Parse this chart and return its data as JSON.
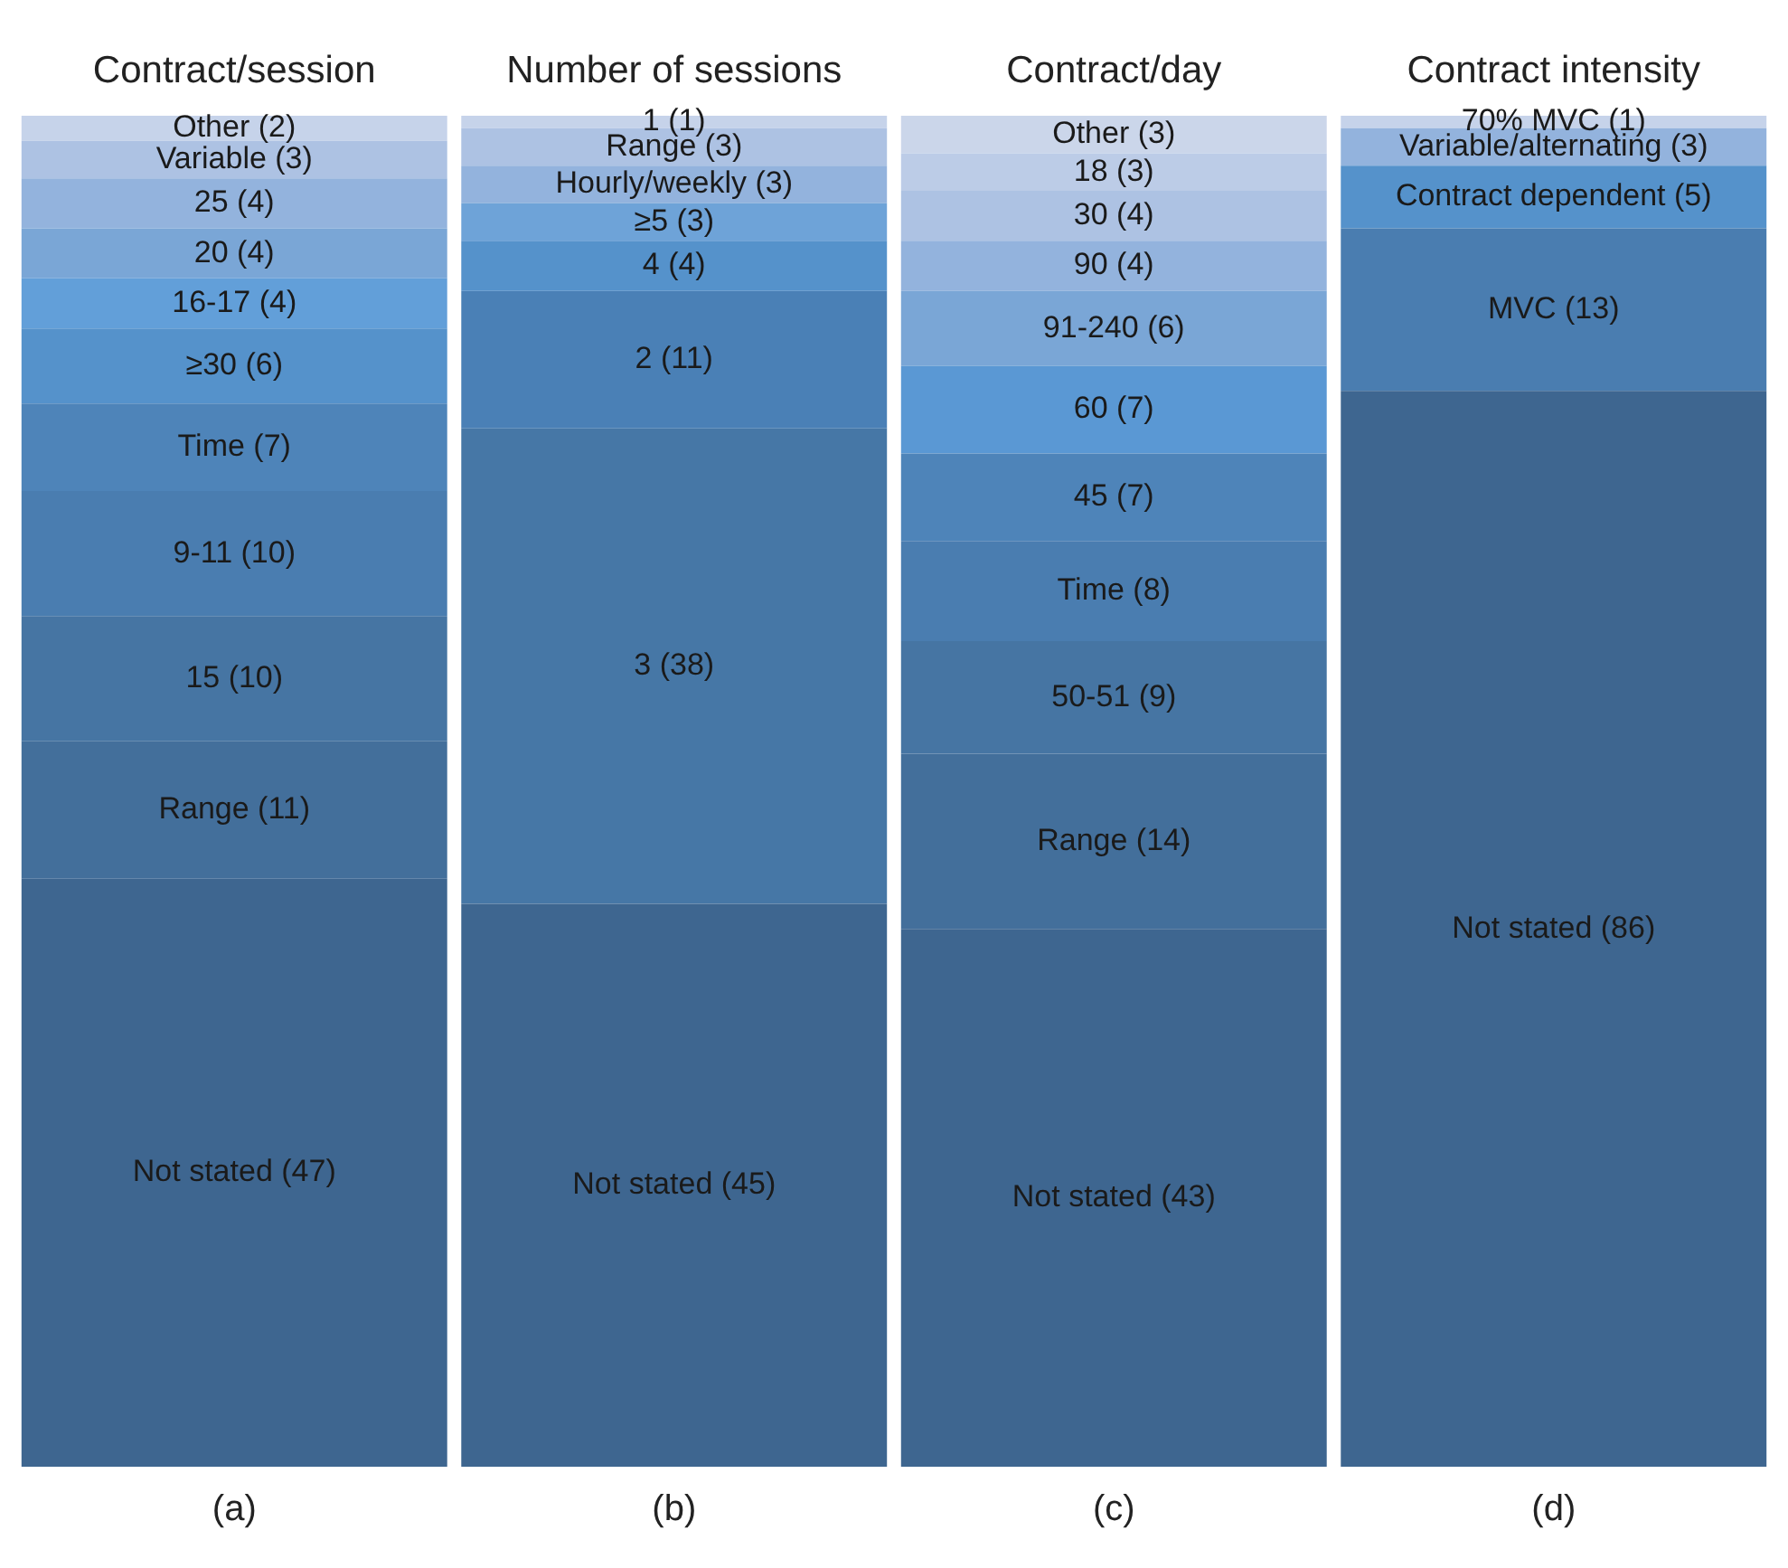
{
  "chart_data": {
    "type": "bar",
    "categories": [
      "(a)",
      "(b)",
      "(c)",
      "(d)"
    ],
    "stacked": true,
    "tick_labels": "x",
    "annotations": [
      {
        "text": "Contract/session",
        "x": "(a)",
        "y": 108
      },
      {
        "text": "Number of sessions",
        "x": "(b)",
        "y": 108
      },
      {
        "text": "Contract/day",
        "x": "(c)",
        "y": 108
      },
      {
        "text": "Contract intensity",
        "x": "(d)",
        "y": 108
      }
    ],
    "series": [
      {
        "values": [
          47,
          45,
          43,
          86
        ],
        "colors": [
          "#3e6690",
          "#3e6690",
          "#3e6690",
          "#3e6690"
        ],
        "value_labels": [
          "Not stated (47)",
          "Not stated (45)",
          "Not stated (43)",
          "Not stated (86)"
        ]
      },
      {
        "values": [
          11,
          38,
          14,
          13
        ],
        "colors": [
          "#436f9b",
          "#4677a6",
          "#436f9b",
          "#4a7db0"
        ],
        "value_labels": [
          "Range (11)",
          "3 (38)",
          "Range (14)",
          "MVC (13)"
        ]
      },
      {
        "values": [
          10,
          11,
          9,
          5
        ],
        "colors": [
          "#4675a3",
          "#4a80b6",
          "#4675a3",
          "#5592cb"
        ],
        "value_labels": [
          "15 (10)",
          "2 (11)",
          "50-51 (9)",
          "Contract dependent (5)"
        ]
      },
      {
        "values": [
          10,
          4,
          8,
          3
        ],
        "colors": [
          "#4a7db0",
          "#5592cb",
          "#4a7db0",
          "#93b3dd"
        ],
        "value_labels": [
          "9-11 (10)",
          "4 (4)",
          "Time (8)",
          "Variable/alternating (3)"
        ]
      },
      {
        "values": [
          7,
          3,
          7,
          1
        ],
        "colors": [
          "#4e84b9",
          "#6ea3d8",
          "#4e84b9",
          "#c6d3ea"
        ],
        "value_labels": [
          "Time (7)",
          "≥5 (3)",
          "45 (7)",
          "70% MVC (1)"
        ]
      },
      {
        "values": [
          6,
          3,
          7,
          null
        ],
        "colors": [
          "#5592cb",
          "#93b3dd",
          "#5a98d4",
          "#c6d3ea"
        ],
        "value_labels": [
          "≥30 (6)",
          "Hourly/weekly (3)",
          "60 (7)",
          null
        ]
      },
      {
        "values": [
          4,
          3,
          6,
          null
        ],
        "colors": [
          "#629fd9",
          "#adc2e3",
          "#7aa6d6",
          "#c6d3ea"
        ],
        "value_labels": [
          "16-17 (4)",
          "Range (3)",
          "91-240 (6)",
          null
        ]
      },
      {
        "values": [
          4,
          1,
          4,
          null
        ],
        "colors": [
          "#7aa6d6",
          "#c6d3ea",
          "#93b3dd",
          "#c6d3ea"
        ],
        "value_labels": [
          "20 (4)",
          "1 (1)",
          "90 (4)",
          null
        ]
      },
      {
        "values": [
          4,
          null,
          4,
          null
        ],
        "colors": [
          "#93b3dd",
          "#c6d3ea",
          "#adc2e3",
          "#c6d3ea"
        ],
        "value_labels": [
          "25 (4)",
          null,
          "30 (4)",
          null
        ]
      },
      {
        "values": [
          3,
          null,
          3,
          null
        ],
        "colors": [
          "#adc2e3",
          "#c6d3ea",
          "#bccce7",
          "#c6d3ea"
        ],
        "value_labels": [
          "Variable (3)",
          null,
          "18 (3)",
          null
        ]
      },
      {
        "values": [
          2,
          null,
          3,
          null
        ],
        "colors": [
          "#c6d3ea",
          "#c6d3ea",
          "#cbd6ea",
          "#c6d3ea"
        ],
        "value_labels": [
          "Other (2)",
          null,
          "Other (3)",
          null
        ]
      }
    ]
  }
}
